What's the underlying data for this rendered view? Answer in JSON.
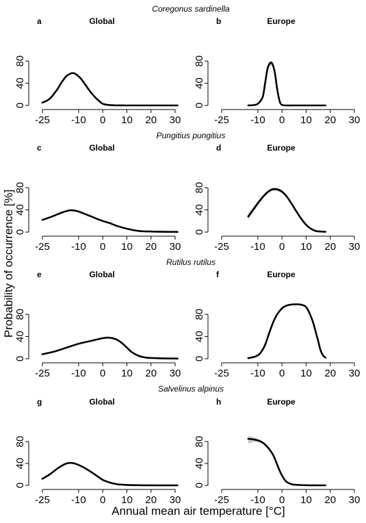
{
  "figure": {
    "xlabel": "Annual mean air temperature [°C]",
    "ylabel": "Probability of occurrence [%]"
  },
  "rows": [
    {
      "species": "Coregonus sardinella"
    },
    {
      "species": "Pungitius pungitius"
    },
    {
      "species": "Rutilus rutilus"
    },
    {
      "species": "Salvelinus alpinus"
    }
  ],
  "chart_data": [
    {
      "type": "line",
      "panel": "a",
      "title": "Global",
      "xlim": [
        -25,
        30
      ],
      "ylim": [
        0,
        100
      ],
      "xticks": [
        "-25",
        "-10",
        "0",
        "10",
        "20",
        "30"
      ],
      "yticks": [
        "0",
        "40",
        "80"
      ],
      "band": false,
      "x": [
        -25,
        -22,
        -19,
        -17,
        -15,
        -13,
        -12,
        -11,
        -9,
        -7,
        -5,
        -3,
        -1,
        0,
        2,
        5,
        8,
        12,
        20,
        31
      ],
      "y": [
        5,
        12,
        28,
        42,
        53,
        58,
        58,
        56,
        48,
        36,
        24,
        14,
        6,
        3,
        1,
        0.3,
        0.1,
        0,
        0,
        0
      ]
    },
    {
      "type": "line",
      "panel": "b",
      "title": "Europe",
      "xlim": [
        -25,
        30
      ],
      "ylim": [
        0,
        100
      ],
      "xticks": [
        "-25",
        "-10",
        "0",
        "10",
        "20",
        "30"
      ],
      "yticks": [
        "0",
        "40",
        "80"
      ],
      "band": true,
      "x": [
        -14,
        -12,
        -10,
        -8,
        -7,
        -6,
        -5,
        -4,
        -3,
        -2,
        -1,
        0,
        2,
        5,
        10,
        18
      ],
      "y": [
        0,
        0.5,
        3,
        15,
        40,
        66,
        76,
        75,
        60,
        30,
        8,
        1,
        0,
        0,
        0,
        0
      ],
      "lower": [
        0,
        0.3,
        2,
        12,
        36,
        62,
        72,
        70,
        55,
        26,
        6,
        0.5,
        0,
        0,
        0,
        0
      ],
      "upper": [
        0.5,
        1,
        4,
        18,
        44,
        70,
        80,
        80,
        64,
        34,
        10,
        2,
        0,
        0,
        0,
        0
      ]
    },
    {
      "type": "line",
      "panel": "c",
      "title": "Global",
      "xlim": [
        -25,
        30
      ],
      "ylim": [
        0,
        100
      ],
      "xticks": [
        "-25",
        "-10",
        "0",
        "10",
        "20",
        "30"
      ],
      "yticks": [
        "0",
        "40",
        "80"
      ],
      "band": false,
      "x": [
        -25,
        -21,
        -17,
        -14,
        -12,
        -10,
        -7,
        -3,
        0,
        3,
        6,
        10,
        15,
        20,
        25,
        31
      ],
      "y": [
        22,
        28,
        35,
        39,
        39,
        37,
        32,
        25,
        20,
        16,
        11,
        6,
        2,
        1,
        0.5,
        0.3
      ]
    },
    {
      "type": "line",
      "panel": "d",
      "title": "Europe",
      "xlim": [
        -25,
        30
      ],
      "ylim": [
        0,
        100
      ],
      "xticks": [
        "-25",
        "-10",
        "0",
        "10",
        "20",
        "30"
      ],
      "yticks": [
        "0",
        "40",
        "80"
      ],
      "band": true,
      "x": [
        -14,
        -12,
        -10,
        -8,
        -6,
        -4,
        -2,
        0,
        2,
        4,
        6,
        8,
        10,
        12,
        14,
        16,
        18
      ],
      "y": [
        28,
        40,
        52,
        63,
        72,
        77,
        77,
        73,
        64,
        51,
        37,
        24,
        13,
        6,
        2,
        1,
        0.5
      ],
      "lower": [
        22,
        35,
        48,
        60,
        69,
        74,
        74,
        70,
        61,
        48,
        34,
        22,
        11,
        5,
        1.5,
        0.5,
        0.2
      ],
      "upper": [
        34,
        45,
        56,
        66,
        75,
        80,
        80,
        76,
        67,
        54,
        40,
        26,
        15,
        7,
        2.5,
        1.5,
        0.8
      ]
    },
    {
      "type": "line",
      "panel": "e",
      "title": "Global",
      "xlim": [
        -25,
        30
      ],
      "ylim": [
        0,
        100
      ],
      "xticks": [
        "-25",
        "-10",
        "0",
        "10",
        "20",
        "30"
      ],
      "yticks": [
        "0",
        "40",
        "80"
      ],
      "band": false,
      "x": [
        -25,
        -20,
        -15,
        -10,
        -5,
        0,
        2,
        4,
        6,
        8,
        10,
        12,
        15,
        18,
        22,
        26,
        31
      ],
      "y": [
        8,
        13,
        20,
        27,
        32,
        37,
        38,
        37,
        34,
        28,
        20,
        12,
        5,
        2,
        1,
        0.5,
        0.3
      ]
    },
    {
      "type": "line",
      "panel": "f",
      "title": "Europe",
      "xlim": [
        -25,
        30
      ],
      "ylim": [
        0,
        100
      ],
      "xticks": [
        "-25",
        "-10",
        "0",
        "10",
        "20",
        "30"
      ],
      "yticks": [
        "0",
        "40",
        "80"
      ],
      "band": false,
      "x": [
        -14,
        -11,
        -9,
        -7,
        -5,
        -3,
        -1,
        1,
        3,
        5,
        7,
        9,
        10,
        11,
        12,
        13,
        14,
        15,
        16,
        17,
        18
      ],
      "y": [
        1,
        4,
        10,
        25,
        50,
        72,
        86,
        94,
        97,
        98,
        98,
        96,
        93,
        86,
        76,
        64,
        48,
        32,
        15,
        6,
        2
      ]
    },
    {
      "type": "line",
      "panel": "g",
      "title": "Global",
      "xlim": [
        -25,
        30
      ],
      "ylim": [
        0,
        100
      ],
      "xticks": [
        "-25",
        "-10",
        "0",
        "10",
        "20",
        "30"
      ],
      "yticks": [
        "0",
        "40",
        "80"
      ],
      "band": false,
      "x": [
        -25,
        -22,
        -18,
        -15,
        -13,
        -11,
        -8,
        -5,
        -2,
        0,
        3,
        6,
        10,
        15,
        20,
        25,
        31
      ],
      "y": [
        12,
        20,
        33,
        40,
        41,
        39,
        33,
        25,
        16,
        10,
        5,
        2,
        0.8,
        0.3,
        0.1,
        0,
        0
      ]
    },
    {
      "type": "line",
      "panel": "h",
      "title": "Europe",
      "xlim": [
        -25,
        30
      ],
      "ylim": [
        0,
        100
      ],
      "xticks": [
        "-25",
        "-10",
        "0",
        "10",
        "20",
        "30"
      ],
      "yticks": [
        "0",
        "40",
        "80"
      ],
      "band": true,
      "x": [
        -14,
        -12,
        -10,
        -8,
        -6,
        -4,
        -3,
        -2,
        -1,
        0,
        1,
        2,
        4,
        6,
        8,
        10,
        12,
        15,
        18
      ],
      "y": [
        85,
        84,
        82,
        78,
        70,
        58,
        49,
        38,
        27,
        18,
        11,
        6,
        2,
        1,
        0.5,
        0.2,
        0.1,
        0,
        0
      ],
      "lower": [
        76,
        79,
        80,
        76,
        68,
        56,
        47,
        36,
        25,
        16,
        10,
        5,
        1.5,
        0.7,
        0.3,
        0.1,
        0,
        0,
        0
      ],
      "upper": [
        90,
        88,
        85,
        80,
        72,
        60,
        51,
        40,
        29,
        20,
        12,
        7,
        2.5,
        1.3,
        0.7,
        0.3,
        0.2,
        0.1,
        0.1
      ]
    }
  ]
}
